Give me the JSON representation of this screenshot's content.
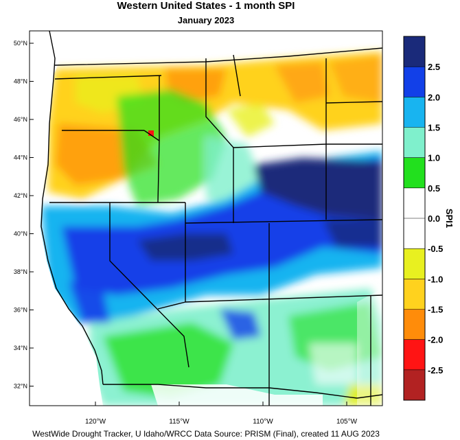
{
  "title": "Western United States - 1 month SPI",
  "subtitle": "January 2023",
  "footer": "WestWide Drought Tracker, U Idaho/WRCC Data Source: PRISM (Final), created 11 AUG 2023",
  "colorbar": {
    "label": "SPI1",
    "bins": [
      {
        "color": "#1a2a7a"
      },
      {
        "color": "#1240e8"
      },
      {
        "color": "#18b4f0"
      },
      {
        "color": "#7ff0cc"
      },
      {
        "color": "#22e01e"
      },
      {
        "color": "#ffffff"
      },
      {
        "color": "#ffffff"
      },
      {
        "color": "#e8f020"
      },
      {
        "color": "#ffd21e"
      },
      {
        "color": "#ff8c0a"
      },
      {
        "color": "#ff1414"
      },
      {
        "color": "#b22222"
      }
    ],
    "tick_labels": [
      "2.5",
      "2.0",
      "1.5",
      "1.0",
      "0.5",
      "0.0",
      "-0.5",
      "-1.0",
      "-1.5",
      "-2.0",
      "-2.5"
    ]
  },
  "lat_labels": [
    "50°N",
    "48°N",
    "46°N",
    "44°N",
    "42°N",
    "40°N",
    "38°N",
    "36°N",
    "34°N",
    "32°N"
  ],
  "lon_labels": [
    "120°W",
    "115°W",
    "110°W",
    "105°W"
  ]
}
